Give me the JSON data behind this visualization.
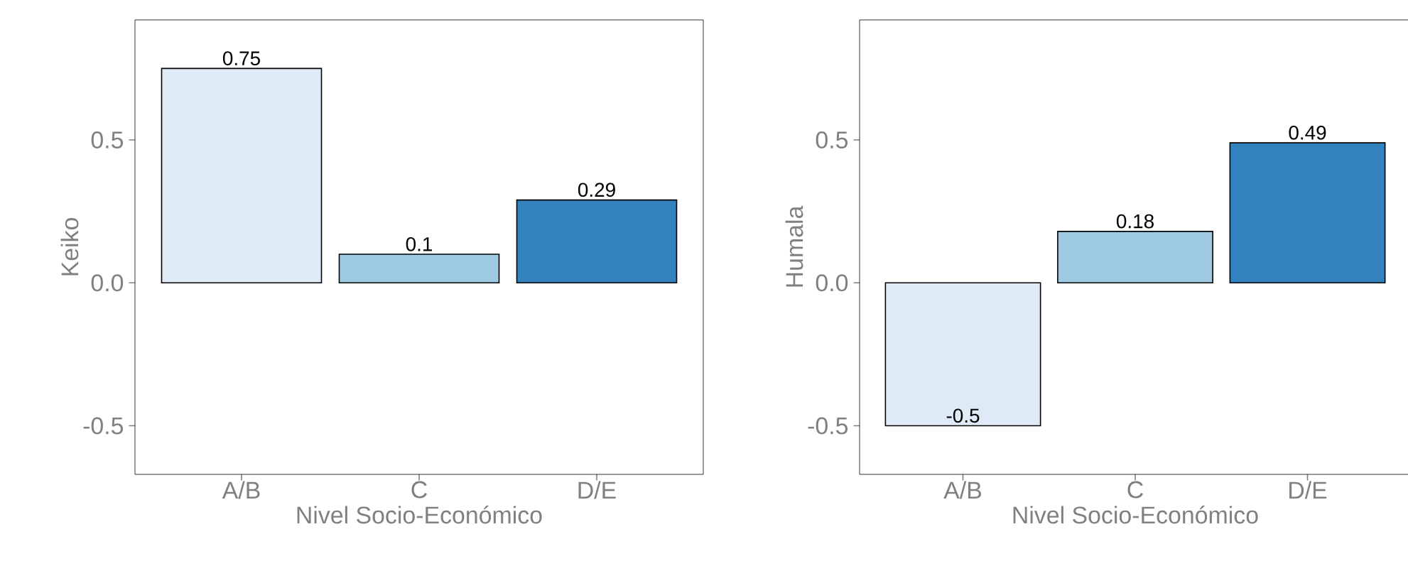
{
  "chart_data": [
    {
      "type": "bar",
      "xlabel": "Nivel Socio-Económico",
      "ylabel": "Keiko",
      "categories": [
        "A/B",
        "C",
        "D/E"
      ],
      "values": [
        0.75,
        0.1,
        0.29
      ],
      "colors": [
        "#deebf7",
        "#9ecae1",
        "#3182bd"
      ],
      "ylim": [
        -0.67,
        0.92
      ],
      "yticks": [
        {
          "value": -0.5,
          "label": "-0.5"
        },
        {
          "value": 0,
          "label": "0.0"
        },
        {
          "value": 0.5,
          "label": "0.5"
        }
      ],
      "data_labels": true
    },
    {
      "type": "bar",
      "xlabel": "Nivel Socio-Económico",
      "ylabel": "Humala",
      "categories": [
        "A/B",
        "C",
        "D/E"
      ],
      "values": [
        -0.5,
        0.18,
        0.49
      ],
      "colors": [
        "#deebf7",
        "#9ecae1",
        "#3182bd"
      ],
      "ylim": [
        -0.67,
        0.92
      ],
      "yticks": [
        {
          "value": -0.5,
          "label": "-0.5"
        },
        {
          "value": 0,
          "label": "0.0"
        },
        {
          "value": 0.5,
          "label": "0.5"
        }
      ],
      "data_labels": true
    }
  ]
}
